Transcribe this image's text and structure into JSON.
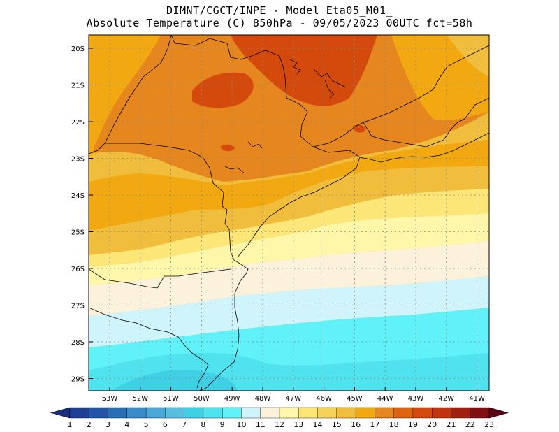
{
  "title": {
    "line1": "DIMNT/CGCT/INPE -  Model Eta05_M01_",
    "line2": "Absolute Temperature (C) 850hPa -  09/05/2023 00UTC fct=58h"
  },
  "map": {
    "lat_labels": [
      "20S",
      "21S",
      "22S",
      "23S",
      "24S",
      "25S",
      "26S",
      "27S",
      "28S",
      "29S"
    ],
    "lon_labels": [
      "53W",
      "52W",
      "51W",
      "50W",
      "49W",
      "48W",
      "47W",
      "46W",
      "45W",
      "44W",
      "43W",
      "42W",
      "41W"
    ]
  },
  "colorbar": {
    "labels": [
      "1",
      "2",
      "3",
      "4",
      "5",
      "6",
      "7",
      "8",
      "9",
      "10",
      "11",
      "12",
      "13",
      "14",
      "15",
      "16",
      "17",
      "18",
      "19",
      "20",
      "21",
      "22",
      "23"
    ],
    "colors": [
      "#1e3f96",
      "#2255a8",
      "#2a6eb8",
      "#3a8cc8",
      "#4aa8d6",
      "#58c0de",
      "#40d0e6",
      "#50e2ee",
      "#60f2f8",
      "#d0f4fc",
      "#fcf2dc",
      "#fef6a8",
      "#fce678",
      "#f6d25c",
      "#f0be3c",
      "#f2a810",
      "#e6861e",
      "#dc6414",
      "#d44a0c",
      "#c0340e",
      "#a02010",
      "#801012"
    ],
    "under_color": "#1a2e80",
    "over_color": "#5a0414"
  }
}
